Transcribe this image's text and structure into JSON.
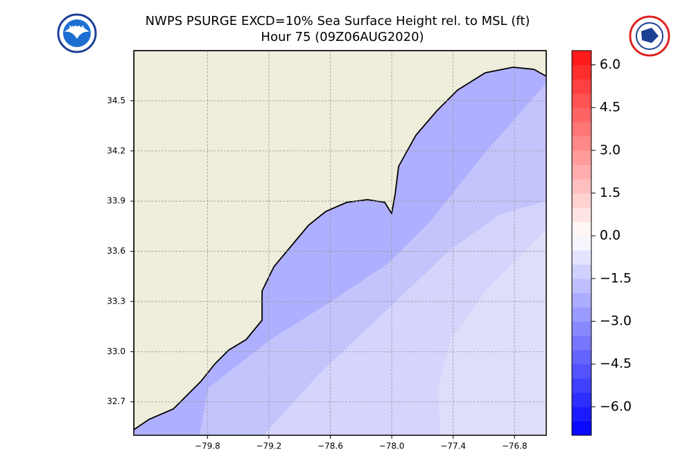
{
  "chart_data": {
    "type": "map",
    "title": "NWPS PSURGE EXCD=10% Sea Surface Height rel. to MSL (ft)",
    "subtitle": "Hour 75 (09Z06AUG2020)",
    "logo_text": "NOAA",
    "xlim": [
      -80.52,
      -76.49
    ],
    "ylim": [
      32.5,
      34.8
    ],
    "xticks": [
      {
        "value": -79.8,
        "label": "−79.8"
      },
      {
        "value": -79.2,
        "label": "−79.2"
      },
      {
        "value": -78.6,
        "label": "−78.6"
      },
      {
        "value": -78.0,
        "label": "−78.0"
      },
      {
        "value": -77.4,
        "label": "−77.4"
      },
      {
        "value": -76.8,
        "label": "−76.8"
      }
    ],
    "yticks": [
      {
        "value": 32.7,
        "label": "32.7"
      },
      {
        "value": 33.0,
        "label": "33.0"
      },
      {
        "value": 33.3,
        "label": "33.3"
      },
      {
        "value": 33.6,
        "label": "33.6"
      },
      {
        "value": 33.9,
        "label": "33.9"
      },
      {
        "value": 34.2,
        "label": "34.2"
      },
      {
        "value": 34.5,
        "label": "34.5"
      }
    ],
    "grid": true,
    "colormap": "bwr",
    "colorbar": {
      "lim": [
        -7,
        6.5
      ],
      "step": 0.5,
      "ticks": [
        {
          "value": -6.0,
          "label": "−6.0"
        },
        {
          "value": -4.5,
          "label": "−4.5"
        },
        {
          "value": -3.0,
          "label": "−3.0"
        },
        {
          "value": -1.5,
          "label": "−1.5"
        },
        {
          "value": 0.0,
          "label": "0.0"
        },
        {
          "value": 1.5,
          "label": "1.5"
        },
        {
          "value": 3.0,
          "label": "3.0"
        },
        {
          "value": 4.5,
          "label": "4.5"
        },
        {
          "value": 6.0,
          "label": "6.0"
        }
      ]
    }
  }
}
